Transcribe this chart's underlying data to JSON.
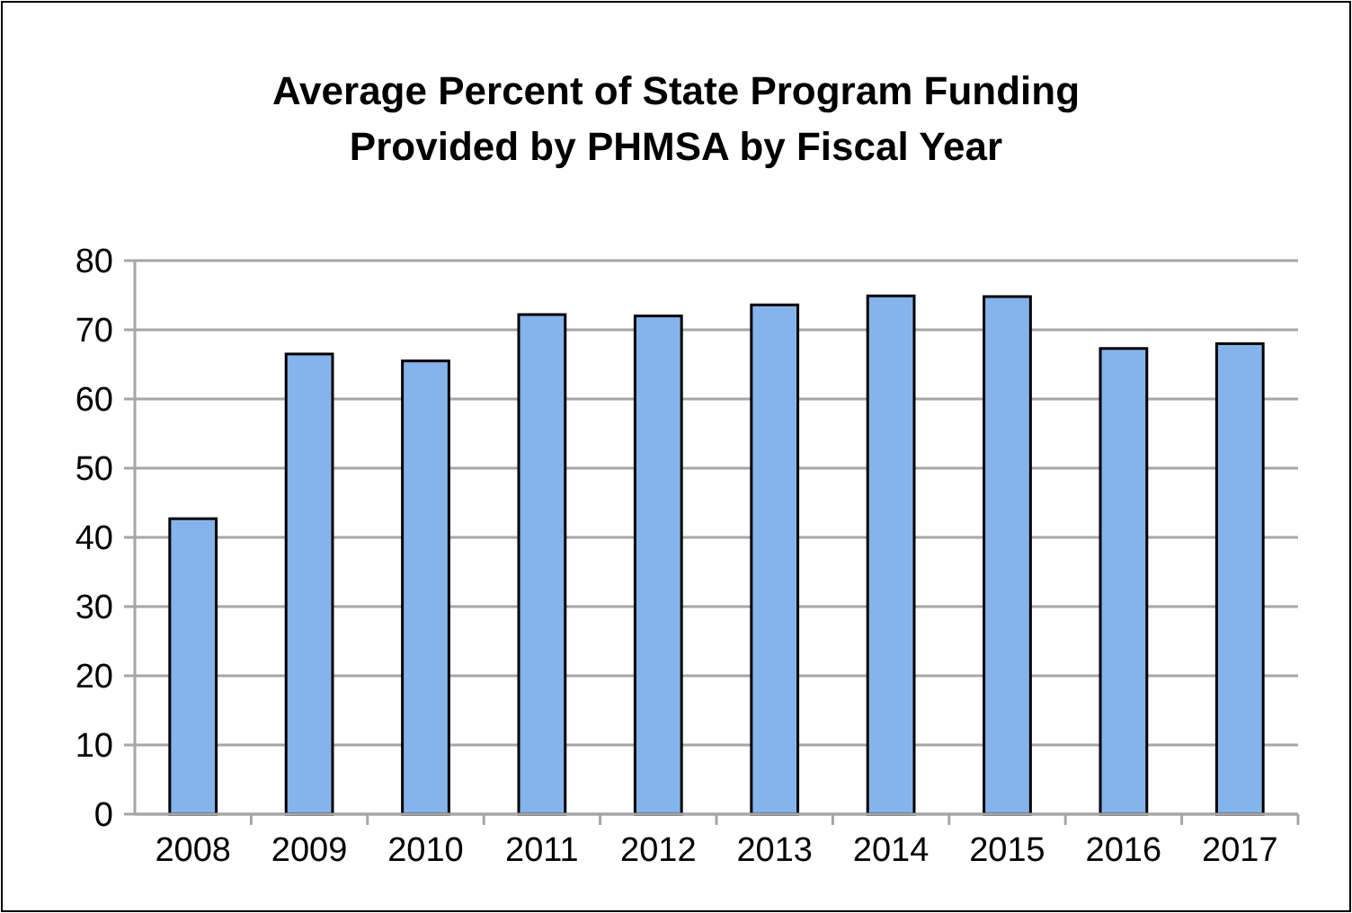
{
  "chart_data": {
    "type": "bar",
    "title": "Average Percent of State Program Funding\nProvided by PHMSA by Fiscal Year",
    "categories": [
      "2008",
      "2009",
      "2010",
      "2011",
      "2012",
      "2013",
      "2014",
      "2015",
      "2016",
      "2017"
    ],
    "values": [
      42.7,
      66.5,
      65.5,
      72.2,
      72.0,
      73.6,
      74.9,
      74.8,
      67.3,
      68.0
    ],
    "color": "#85b3ec",
    "ylim": [
      0,
      80
    ],
    "yticks": [
      0,
      10,
      20,
      30,
      40,
      50,
      60,
      70,
      80
    ],
    "grid": "y"
  }
}
